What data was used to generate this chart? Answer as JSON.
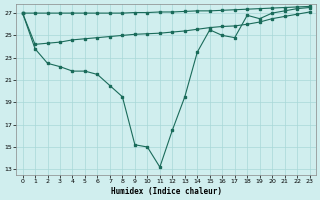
{
  "xlabel": "Humidex (Indice chaleur)",
  "background_color": "#d0eeee",
  "grid_color": "#a8d8d8",
  "line_color": "#1a6b5a",
  "xlim": [
    -0.5,
    23.5
  ],
  "ylim": [
    12.5,
    27.8
  ],
  "xticks": [
    0,
    1,
    2,
    3,
    4,
    5,
    6,
    7,
    8,
    9,
    10,
    11,
    12,
    13,
    14,
    15,
    16,
    17,
    18,
    19,
    20,
    21,
    22,
    23
  ],
  "yticks": [
    13,
    15,
    17,
    19,
    21,
    23,
    25,
    27
  ],
  "curve_v_x": [
    0,
    1,
    2,
    3,
    4,
    5,
    6,
    7,
    8,
    9,
    10,
    11,
    12,
    13,
    14,
    15,
    16,
    17,
    18,
    19,
    20,
    21,
    22,
    23
  ],
  "curve_v_y": [
    27.0,
    23.8,
    22.5,
    22.2,
    21.8,
    21.8,
    21.5,
    20.5,
    19.5,
    15.2,
    15.0,
    13.2,
    16.5,
    19.5,
    23.5,
    25.5,
    25.0,
    24.8,
    26.8,
    26.5,
    27.0,
    27.2,
    27.4,
    27.5
  ],
  "curve_mid_x": [
    0,
    1,
    2,
    3,
    4,
    5,
    6,
    7,
    8,
    9,
    10,
    11,
    12,
    13,
    14,
    15,
    16,
    17,
    18,
    19,
    20,
    21,
    22,
    23
  ],
  "curve_mid_y": [
    27.0,
    24.2,
    24.3,
    24.4,
    24.6,
    24.7,
    24.8,
    24.9,
    25.0,
    25.1,
    25.15,
    25.2,
    25.3,
    25.4,
    25.55,
    25.7,
    25.8,
    25.85,
    26.0,
    26.2,
    26.5,
    26.7,
    26.9,
    27.1
  ],
  "curve_top_x": [
    0,
    1,
    2,
    3,
    4,
    5,
    6,
    7,
    8,
    9,
    10,
    11,
    12,
    13,
    14,
    15,
    16,
    17,
    18,
    19,
    20,
    21,
    22,
    23
  ],
  "curve_top_y": [
    27.0,
    27.0,
    27.0,
    27.0,
    27.0,
    27.0,
    27.0,
    27.0,
    27.0,
    27.05,
    27.05,
    27.1,
    27.1,
    27.15,
    27.2,
    27.2,
    27.25,
    27.3,
    27.35,
    27.4,
    27.45,
    27.5,
    27.55,
    27.6
  ]
}
